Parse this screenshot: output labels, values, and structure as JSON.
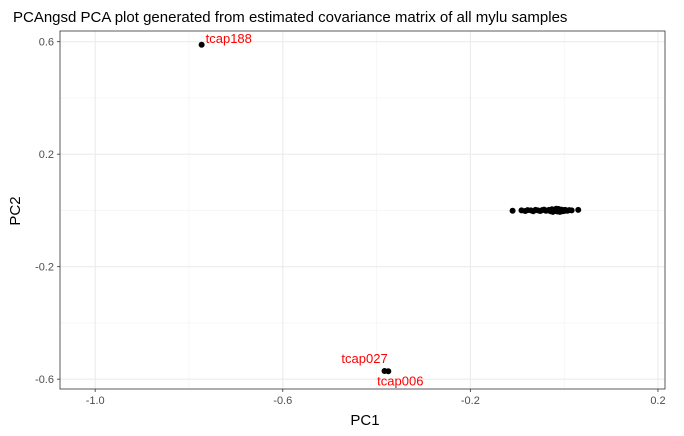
{
  "chart_data": {
    "type": "scatter",
    "title": "PCAngsd PCA plot generated from estimated covariance matrix of all mylu samples",
    "xlabel": "PC1",
    "ylabel": "PC2",
    "xlim": [
      -1.075,
      0.215
    ],
    "ylim": [
      -0.635,
      0.638
    ],
    "xticks": [
      {
        "value": -1.0,
        "label": "-1.0"
      },
      {
        "value": -0.6,
        "label": "-0.6"
      },
      {
        "value": -0.2,
        "label": "-0.2"
      },
      {
        "value": 0.2,
        "label": "0.2"
      }
    ],
    "yticks": [
      {
        "value": 0.6,
        "label": "0.6"
      },
      {
        "value": 0.2,
        "label": "0.2"
      },
      {
        "value": -0.2,
        "label": "-0.2"
      },
      {
        "value": -0.6,
        "label": "-0.6"
      }
    ],
    "grid": true,
    "labels": [
      {
        "text": "tcap188",
        "x": -0.773,
        "y": 0.589
      },
      {
        "text": "tcap027",
        "x": -0.383,
        "y": -0.571
      },
      {
        "text": "tcap006",
        "x": -0.375,
        "y": -0.572
      }
    ],
    "points": [
      {
        "x": -0.773,
        "y": 0.589
      },
      {
        "x": -0.383,
        "y": -0.571
      },
      {
        "x": -0.375,
        "y": -0.572
      },
      {
        "x": -0.11,
        "y": -0.001
      },
      {
        "x": -0.091,
        "y": 0.0
      },
      {
        "x": -0.083,
        "y": -0.002
      },
      {
        "x": -0.078,
        "y": 0.001
      },
      {
        "x": -0.071,
        "y": 0.0
      },
      {
        "x": -0.066,
        "y": -0.003
      },
      {
        "x": -0.061,
        "y": 0.002
      },
      {
        "x": -0.056,
        "y": 0.0
      },
      {
        "x": -0.051,
        "y": -0.002
      },
      {
        "x": -0.047,
        "y": 0.001
      },
      {
        "x": -0.043,
        "y": 0.003
      },
      {
        "x": -0.039,
        "y": -0.001
      },
      {
        "x": -0.035,
        "y": 0.0
      },
      {
        "x": -0.032,
        "y": 0.002
      },
      {
        "x": -0.029,
        "y": -0.003
      },
      {
        "x": -0.026,
        "y": 0.004
      },
      {
        "x": -0.023,
        "y": 0.001
      },
      {
        "x": -0.02,
        "y": -0.002
      },
      {
        "x": -0.018,
        "y": 0.003
      },
      {
        "x": -0.016,
        "y": 0.0
      },
      {
        "x": -0.014,
        "y": -0.004
      },
      {
        "x": -0.012,
        "y": 0.005
      },
      {
        "x": -0.01,
        "y": 0.002
      },
      {
        "x": -0.008,
        "y": -0.001
      },
      {
        "x": -0.006,
        "y": 0.003
      },
      {
        "x": -0.004,
        "y": -0.003
      },
      {
        "x": -0.002,
        "y": 0.001
      },
      {
        "x": 0.0,
        "y": -0.002
      },
      {
        "x": 0.002,
        "y": 0.002
      },
      {
        "x": 0.004,
        "y": 0.0
      },
      {
        "x": 0.007,
        "y": -0.001
      },
      {
        "x": 0.011,
        "y": 0.001
      },
      {
        "x": 0.016,
        "y": 0.0
      },
      {
        "x": 0.03,
        "y": 0.002
      },
      {
        "x": -0.024,
        "y": -0.005
      },
      {
        "x": -0.017,
        "y": 0.006
      },
      {
        "x": -0.009,
        "y": -0.005
      }
    ]
  }
}
